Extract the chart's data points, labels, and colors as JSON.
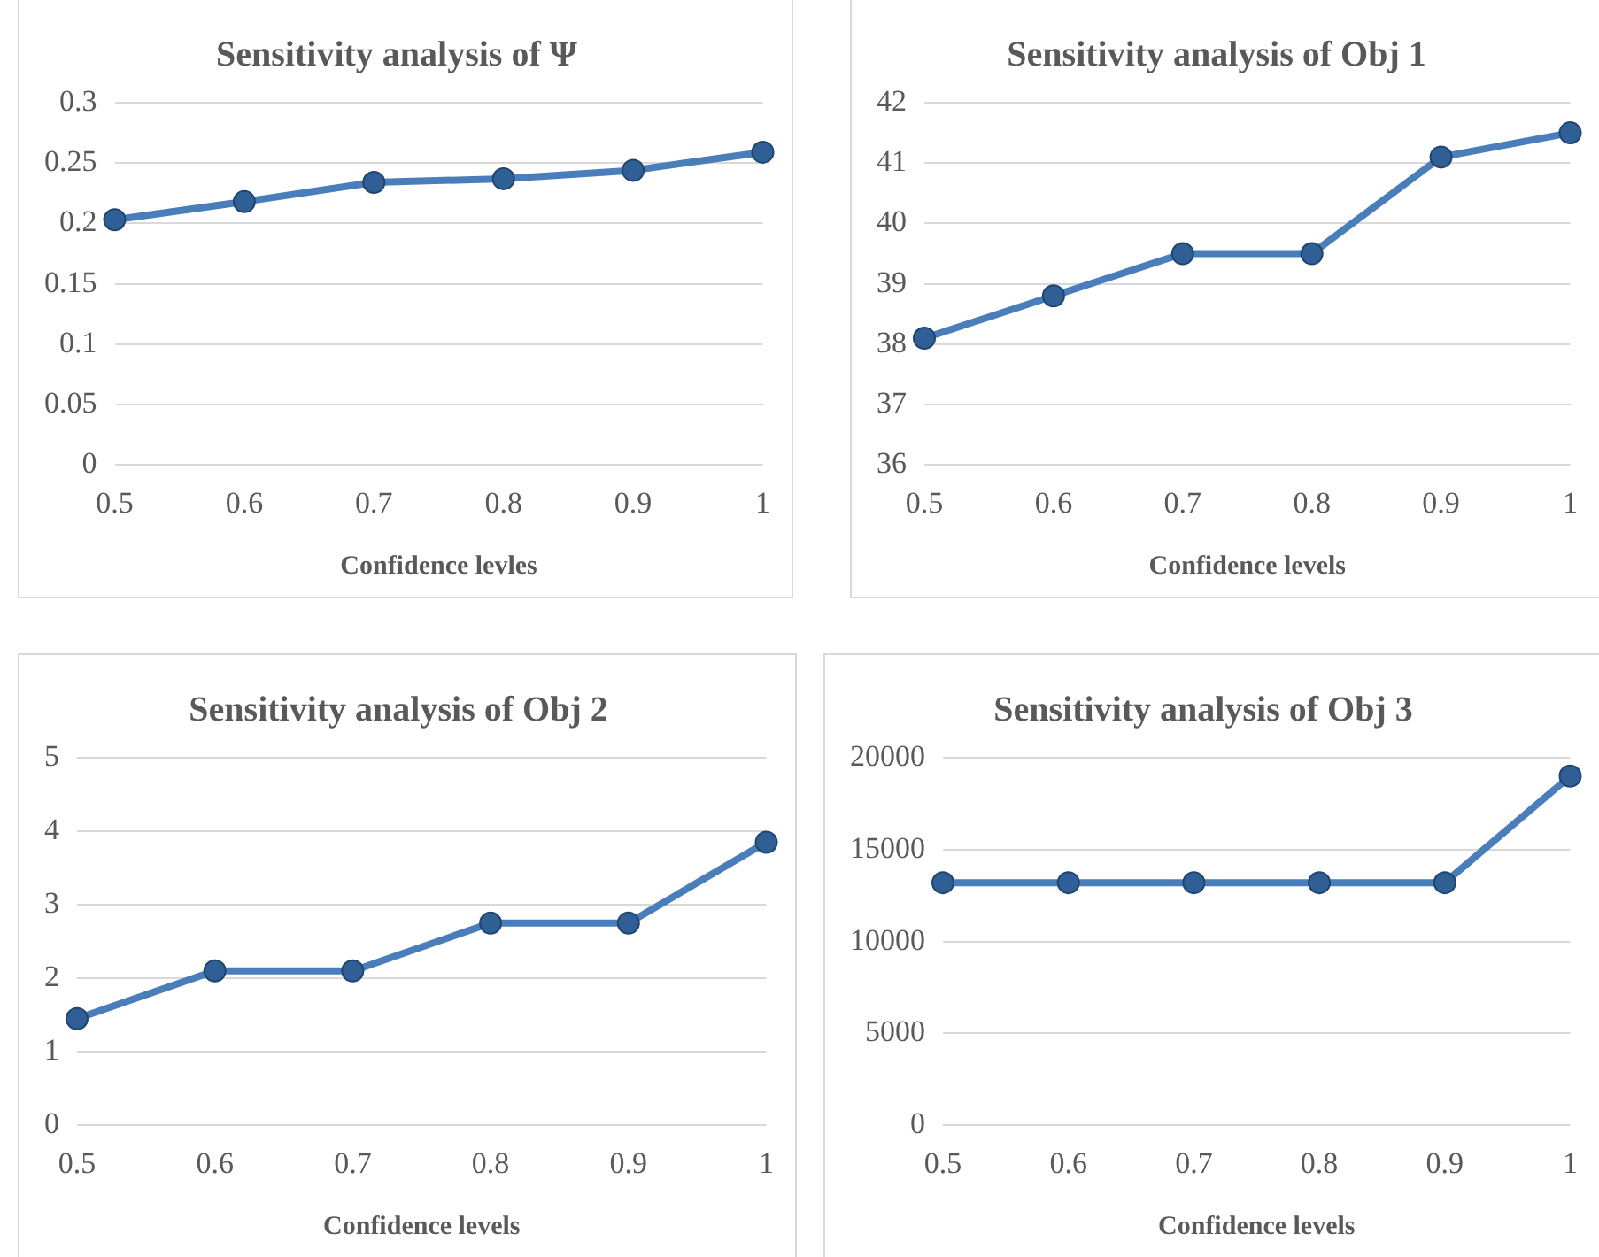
{
  "chart_data": [
    {
      "type": "line",
      "title": "Sensitivity analysis of Ψ",
      "xlabel": "Confidence levles",
      "categories": [
        "0.5",
        "0.6",
        "0.7",
        "0.8",
        "0.9",
        "1"
      ],
      "series": [
        {
          "color": "#4a7ebb",
          "values": [
            0.203,
            0.218,
            0.234,
            0.237,
            0.244,
            0.259
          ]
        }
      ],
      "ylim": [
        0,
        0.3
      ],
      "yticks": [
        0,
        0.05,
        0.1,
        0.15,
        0.2,
        0.25,
        0.3
      ],
      "grid": "y",
      "legend": false,
      "marker": "circle",
      "line_style": "solid"
    },
    {
      "type": "line",
      "title": "Sensitivity analysis of Obj 1",
      "xlabel": "Confidence levels",
      "categories": [
        "0.5",
        "0.6",
        "0.7",
        "0.8",
        "0.9",
        "1"
      ],
      "series": [
        {
          "color": "#4a7ebb",
          "values": [
            38.1,
            38.8,
            39.5,
            39.5,
            41.1,
            41.5
          ]
        }
      ],
      "ylim": [
        36,
        42
      ],
      "yticks": [
        36,
        37,
        38,
        39,
        40,
        41,
        42
      ],
      "grid": "y",
      "legend": false,
      "marker": "circle",
      "line_style": "solid"
    },
    {
      "type": "line",
      "title": "Sensitivity analysis of Obj 2",
      "xlabel": "Confidence levels",
      "categories": [
        "0.5",
        "0.6",
        "0.7",
        "0.8",
        "0.9",
        "1"
      ],
      "series": [
        {
          "color": "#4a7ebb",
          "values": [
            1.45,
            2.1,
            2.1,
            2.75,
            2.75,
            3.85
          ]
        }
      ],
      "ylim": [
        0,
        5
      ],
      "yticks": [
        0,
        1,
        2,
        3,
        4,
        5
      ],
      "grid": "y",
      "legend": false,
      "marker": "circle",
      "line_style": "solid"
    },
    {
      "type": "line",
      "title": "Sensitivity analysis of Obj 3",
      "xlabel": "Confidence levels",
      "categories": [
        "0.5",
        "0.6",
        "0.7",
        "0.8",
        "0.9",
        "1"
      ],
      "series": [
        {
          "color": "#4a7ebb",
          "values": [
            13200,
            13200,
            13200,
            13200,
            13200,
            19000
          ]
        }
      ],
      "ylim": [
        0,
        20000
      ],
      "yticks": [
        0,
        5000,
        10000,
        15000,
        20000
      ],
      "grid": "y",
      "legend": false,
      "marker": "circle",
      "line_style": "solid"
    }
  ]
}
